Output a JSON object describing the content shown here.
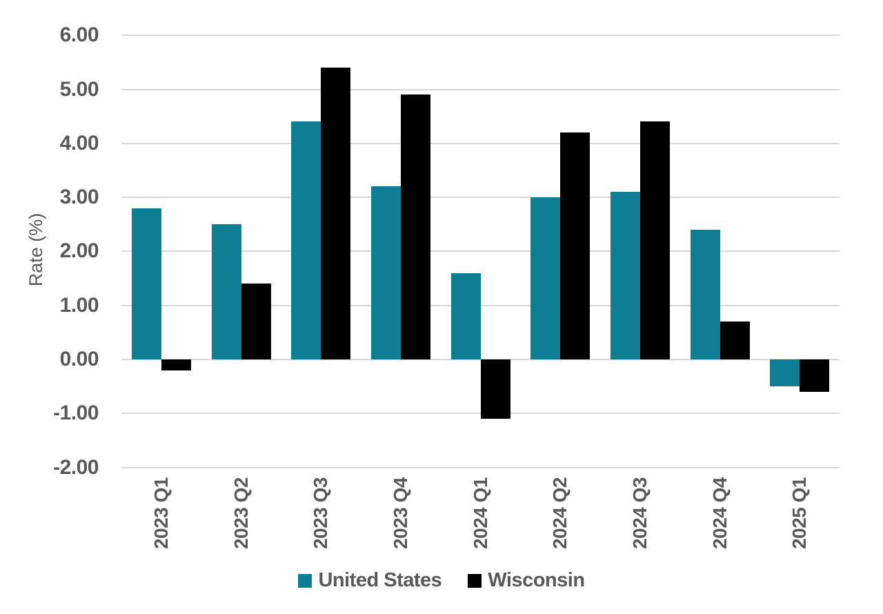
{
  "chart_data": {
    "type": "bar",
    "title": "",
    "xlabel": "",
    "ylabel": "Rate (%)",
    "categories": [
      "2023 Q1",
      "2023 Q2",
      "2023 Q3",
      "2023 Q4",
      "2024 Q1",
      "2024 Q2",
      "2024 Q3",
      "2024 Q4",
      "2025 Q1"
    ],
    "series": [
      {
        "name": "United States",
        "color": "#0d7e93",
        "values": [
          2.8,
          2.5,
          4.4,
          3.2,
          1.6,
          3.0,
          3.1,
          2.4,
          -0.5
        ]
      },
      {
        "name": "Wisconsin",
        "color": "#000000",
        "values": [
          -0.2,
          1.4,
          5.4,
          4.9,
          -1.1,
          4.2,
          4.4,
          0.7,
          -0.6
        ]
      }
    ],
    "ylim": [
      -2,
      6
    ],
    "ytick_values": [
      6,
      5,
      4,
      3,
      2,
      1,
      0,
      -1,
      -2
    ],
    "ytick_labels": [
      "6.00",
      "5.00",
      "4.00",
      "3.00",
      "2.00",
      "1.00",
      "0.00",
      "-1.00",
      "-2.00"
    ],
    "grid": true,
    "legend_position": "bottom"
  },
  "colors": {
    "united_states": "#0d7e93",
    "wisconsin": "#000000",
    "axis_text": "#595959",
    "gridline": "#d9d9d9"
  }
}
